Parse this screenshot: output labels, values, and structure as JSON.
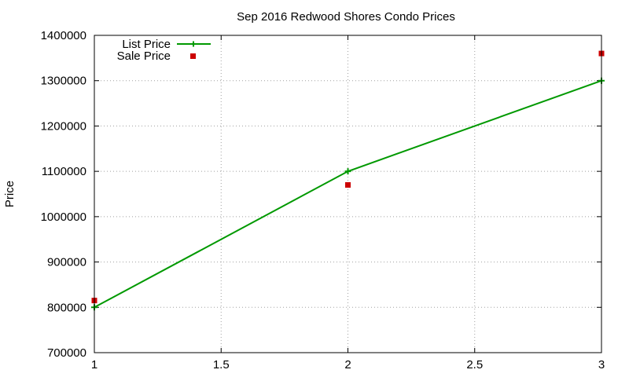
{
  "chart_data": {
    "type": "line",
    "title": "Sep 2016 Redwood Shores Condo Prices",
    "xlabel": "",
    "ylabel": "Price",
    "xlim": [
      1,
      3
    ],
    "ylim": [
      700000,
      1400000
    ],
    "x_ticks": [
      "1",
      "1.5",
      "2",
      "2.5",
      "3"
    ],
    "y_ticks": [
      "700000",
      "800000",
      "900000",
      "1000000",
      "1100000",
      "1200000",
      "1300000",
      "1400000"
    ],
    "grid": true,
    "legend_position": "top-left",
    "series": [
      {
        "name": "List Price",
        "style": "linespoints",
        "marker": "plus",
        "color": "#009900",
        "x": [
          1,
          2,
          3
        ],
        "y": [
          800000,
          1100000,
          1300000
        ]
      },
      {
        "name": "Sale Price",
        "style": "points",
        "marker": "square",
        "color": "#cc0000",
        "x": [
          1,
          2,
          3
        ],
        "y": [
          815000,
          1070000,
          1360000
        ]
      }
    ]
  }
}
